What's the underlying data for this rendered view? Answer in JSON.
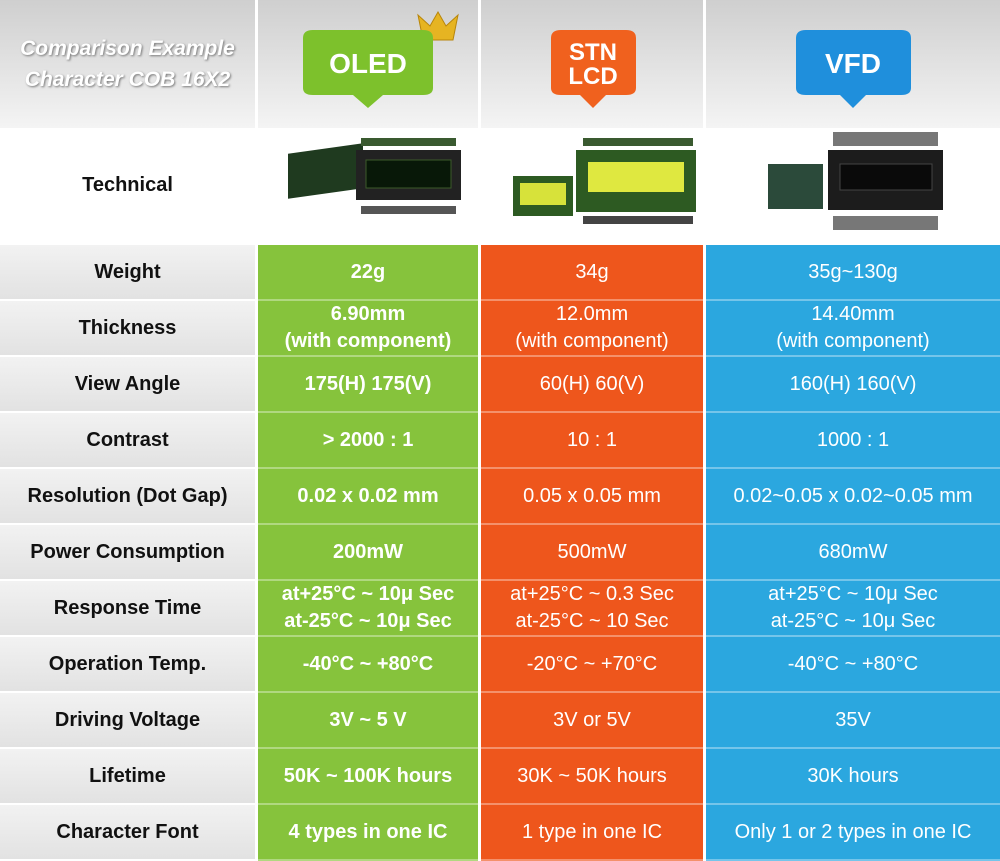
{
  "header": {
    "title": [
      "Comparison Example",
      "Character COB 16X2"
    ],
    "columns": [
      [
        "OLED"
      ],
      [
        "STN",
        "LCD"
      ],
      [
        "VFD"
      ]
    ]
  },
  "technical": {
    "label": "Technical"
  },
  "rows": [
    {
      "label": "Weight",
      "values": [
        [
          "22g"
        ],
        [
          "34g"
        ],
        [
          "35g~130g"
        ]
      ]
    },
    {
      "label": "Thickness",
      "values": [
        [
          "6.90mm",
          "(with component)"
        ],
        [
          "12.0mm",
          "(with component)"
        ],
        [
          "14.40mm",
          "(with component)"
        ]
      ]
    },
    {
      "label": "View Angle",
      "values": [
        [
          "175(H) 175(V)"
        ],
        [
          "60(H) 60(V)"
        ],
        [
          "160(H) 160(V)"
        ]
      ]
    },
    {
      "label": "Contrast",
      "values": [
        [
          "> 2000 : 1"
        ],
        [
          "10 : 1"
        ],
        [
          "1000 : 1"
        ]
      ]
    },
    {
      "label": "Resolution (Dot Gap)",
      "values": [
        [
          "0.02 x 0.02 mm"
        ],
        [
          "0.05 x 0.05 mm"
        ],
        [
          "0.02~0.05 x 0.02~0.05 mm"
        ]
      ]
    },
    {
      "label": "Power Consumption",
      "values": [
        [
          "200mW"
        ],
        [
          "500mW"
        ],
        [
          "680mW"
        ]
      ]
    },
    {
      "label": "Response Time",
      "values": [
        [
          "at+25°C ~ 10μ Sec",
          "at-25°C ~ 10μ Sec"
        ],
        [
          "at+25°C ~ 0.3 Sec",
          "at-25°C ~ 10 Sec"
        ],
        [
          "at+25°C ~ 10μ Sec",
          "at-25°C ~ 10μ Sec"
        ]
      ]
    },
    {
      "label": "Operation Temp.",
      "values": [
        [
          "-40°C ~ +80°C"
        ],
        [
          "-20°C ~ +70°C"
        ],
        [
          "-40°C ~ +80°C"
        ]
      ]
    },
    {
      "label": "Driving Voltage",
      "values": [
        [
          "3V ~ 5 V"
        ],
        [
          "3V or 5V"
        ],
        [
          "35V"
        ]
      ]
    },
    {
      "label": "Lifetime",
      "values": [
        [
          "50K ~ 100K hours"
        ],
        [
          "30K ~ 50K hours"
        ],
        [
          "30K hours"
        ]
      ]
    },
    {
      "label": "Character Font",
      "values": [
        [
          "4 types in one IC"
        ],
        [
          "1 type in one IC"
        ],
        [
          "Only 1 or 2 types in one IC"
        ]
      ]
    }
  ]
}
